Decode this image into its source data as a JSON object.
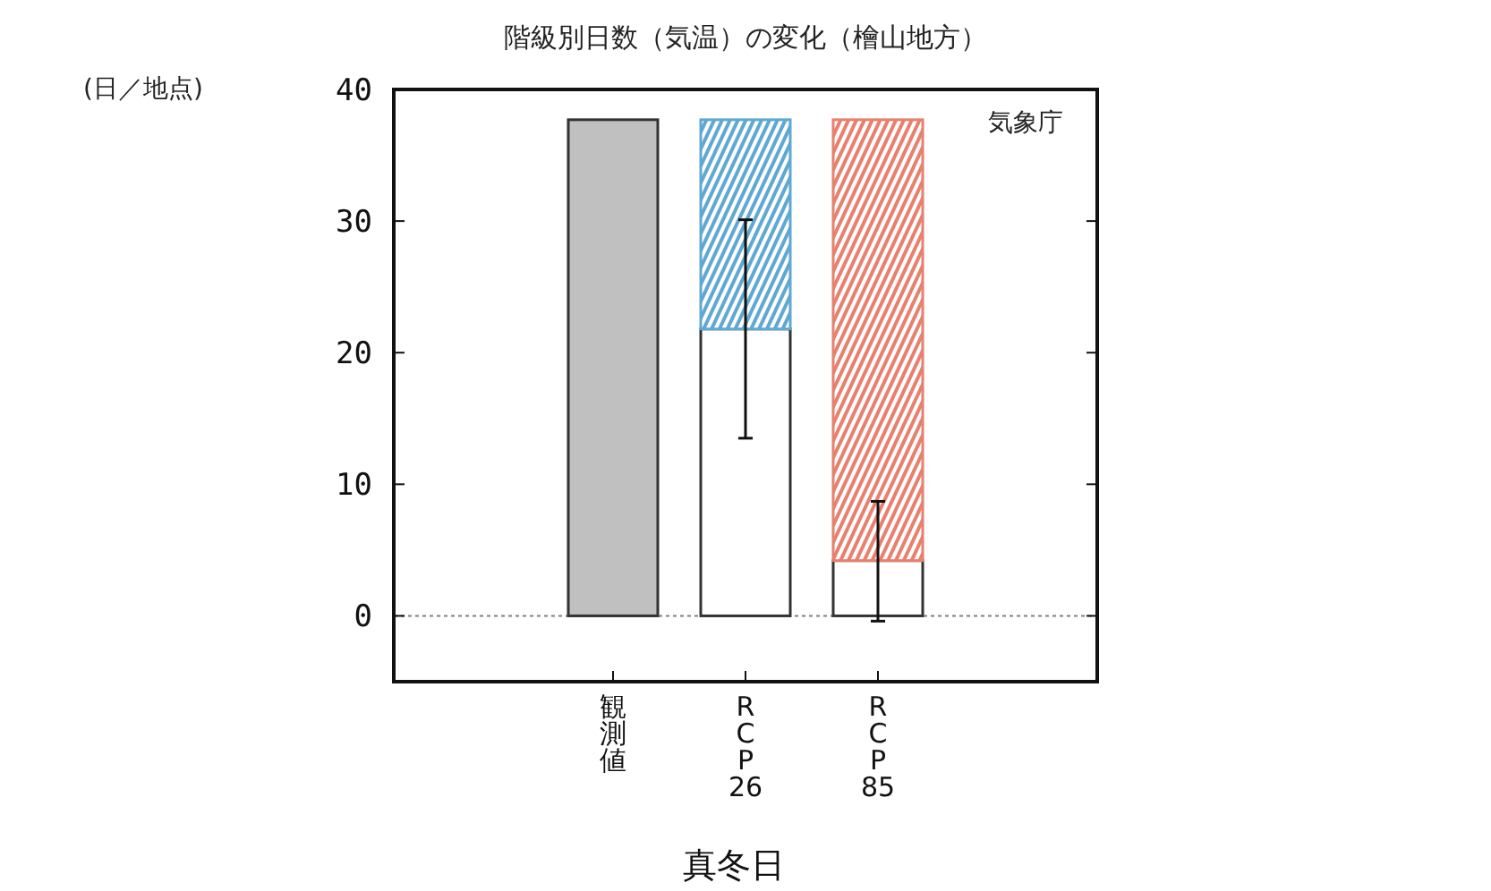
{
  "chart_data": {
    "type": "bar",
    "title": "階級別日数（気温）の変化（檜山地方）",
    "xlabel": "真冬日",
    "annotations": [
      "(日／地点)",
      "気象庁"
    ],
    "categories": [
      "観測値",
      "RCP26",
      "RCP85"
    ],
    "stacked": true,
    "series": [
      {
        "colors": [
          "#c0c0c0",
          "#ffffff",
          "#ffffff"
        ],
        "values": [
          37.7,
          21.8,
          4.2
        ],
        "errors": [
          null,
          [
            13.5,
            30.1
          ],
          [
            -0.4,
            8.7
          ]
        ]
      },
      {
        "colors": [
          null,
          "#5fa8d3",
          "#e8806e"
        ],
        "values": [
          null,
          15.9,
          33.5
        ]
      }
    ],
    "ylim": [
      -5,
      40
    ],
    "yticks": [
      0,
      10,
      20,
      30,
      40
    ],
    "ref_lines": [
      {
        "axis": "y",
        "value": 0,
        "color": "#808080",
        "line_style": "dotted"
      }
    ]
  }
}
